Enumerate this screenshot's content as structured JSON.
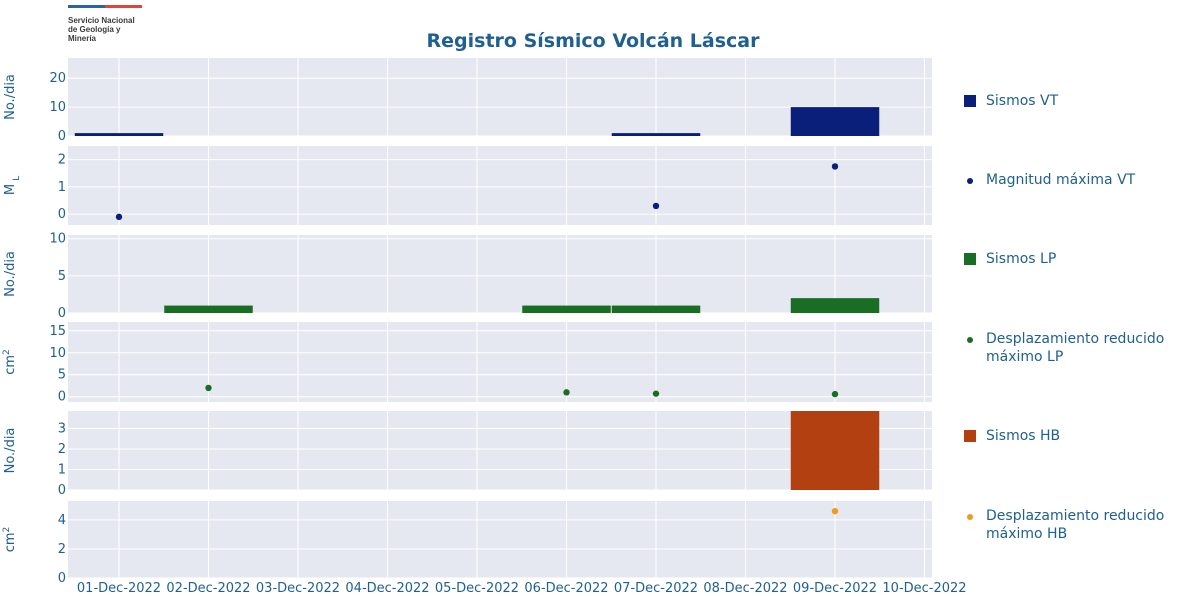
{
  "header": {
    "logo_lines": [
      "Servicio Nacional",
      "de Geología y",
      "Minería"
    ],
    "title": "Registro Sísmico Volcán Láscar"
  },
  "legend": [
    {
      "label": "Sismos VT",
      "symbol": "square",
      "color": "#0a1f7a"
    },
    {
      "label": "Magnitud máxima VT",
      "symbol": "dot",
      "color": "#0a1f7a"
    },
    {
      "label": "Sismos LP",
      "symbol": "square",
      "color": "#1a6e23"
    },
    {
      "label": "Desplazamiento reducido máximo LP",
      "symbol": "dot",
      "color": "#1a6e23"
    },
    {
      "label": "Sismos HB",
      "symbol": "square",
      "color": "#b34010"
    },
    {
      "label": "Desplazamiento reducido máximo HB",
      "symbol": "dot",
      "color": "#f39a1e"
    }
  ],
  "chart_data": {
    "type": "bar",
    "title": "Registro Sísmico Volcán Láscar",
    "x_tick_labels": [
      "01-Dec-2022",
      "02-Dec-2022",
      "03-Dec-2022",
      "04-Dec-2022",
      "05-Dec-2022",
      "06-Dec-2022",
      "07-Dec-2022",
      "08-Dec-2022",
      "09-Dec-2022",
      "10-Dec-2022"
    ],
    "grid": true,
    "legend_position": "right",
    "panels": [
      {
        "name": "Sismos VT",
        "ylabel": "No./dia",
        "kind": "bar",
        "color": "#0a1f7a",
        "ylim": [
          0,
          27
        ],
        "yticks": [
          0,
          10,
          20
        ],
        "points": [
          {
            "x": "01-Dec-2022",
            "y": 1
          },
          {
            "x": "07-Dec-2022",
            "y": 1
          },
          {
            "x": "09-Dec-2022",
            "y": 10
          }
        ]
      },
      {
        "name": "Magnitud máxima VT",
        "ylabel": "M",
        "ylabel_sub": "L",
        "kind": "scatter",
        "color": "#0a1f7a",
        "ylim": [
          -0.4,
          2.5
        ],
        "yticks": [
          0,
          1,
          2
        ],
        "points": [
          {
            "x": "01-Dec-2022",
            "y": -0.1
          },
          {
            "x": "07-Dec-2022",
            "y": 0.3
          },
          {
            "x": "09-Dec-2022",
            "y": 1.75
          }
        ]
      },
      {
        "name": "Sismos LP",
        "ylabel": "No./dia",
        "kind": "bar",
        "color": "#1a6e23",
        "ylim": [
          0,
          10.5
        ],
        "yticks": [
          0,
          5,
          10
        ],
        "points": [
          {
            "x": "02-Dec-2022",
            "y": 1
          },
          {
            "x": "06-Dec-2022",
            "y": 1
          },
          {
            "x": "07-Dec-2022",
            "y": 1
          },
          {
            "x": "09-Dec-2022",
            "y": 2
          }
        ]
      },
      {
        "name": "Desplazamiento reducido máximo LP",
        "ylabel": "cm",
        "ylabel_sup": "2",
        "kind": "scatter",
        "color": "#1a6e23",
        "ylim": [
          -1.2,
          17
        ],
        "yticks": [
          0,
          5,
          10,
          15
        ],
        "points": [
          {
            "x": "02-Dec-2022",
            "y": 2
          },
          {
            "x": "06-Dec-2022",
            "y": 1
          },
          {
            "x": "07-Dec-2022",
            "y": 0.7
          },
          {
            "x": "09-Dec-2022",
            "y": 0.6
          }
        ]
      },
      {
        "name": "Sismos HB",
        "ylabel": "No./dia",
        "kind": "bar",
        "color": "#b34010",
        "ylim": [
          0,
          3.85
        ],
        "yticks": [
          0,
          1,
          2,
          3
        ],
        "points": [
          {
            "x": "09-Dec-2022",
            "y": 3.85
          }
        ]
      },
      {
        "name": "Desplazamiento reducido máximo HB",
        "ylabel": "cm",
        "ylabel_sup": "2",
        "kind": "scatter",
        "color": "#f39a1e",
        "ylim": [
          0,
          5.3
        ],
        "yticks": [
          0,
          2,
          4
        ],
        "points": [
          {
            "x": "09-Dec-2022",
            "y": 4.6
          }
        ]
      }
    ]
  }
}
